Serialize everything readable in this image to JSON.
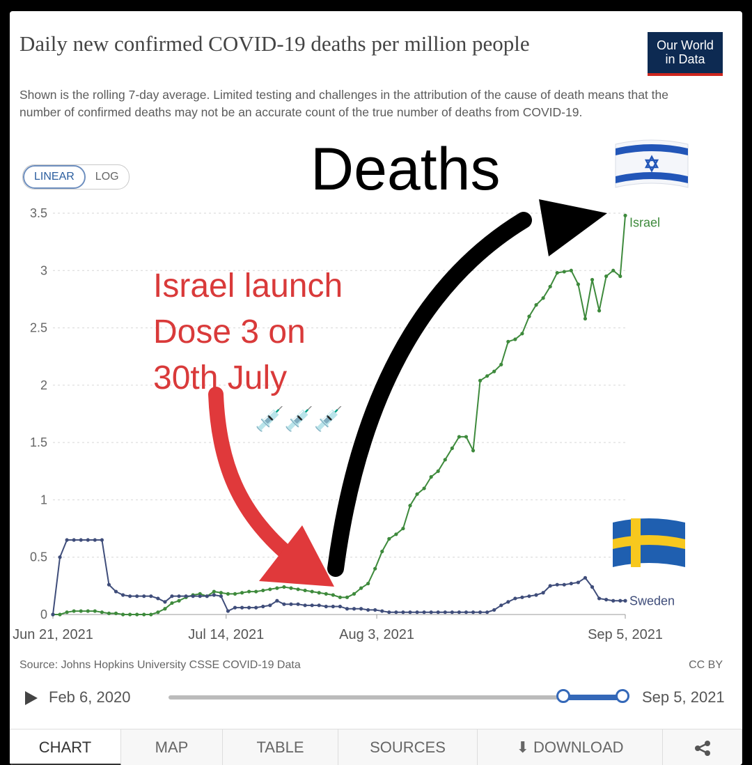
{
  "header": {
    "title": "Daily new confirmed COVID-19 deaths per million people",
    "subtitle": "Shown is the rolling 7-day average. Limited testing and challenges in the attribution of the cause of death means that the number of confirmed deaths may not be an accurate count of the true number of deaths from COVID-19.",
    "logo_line1": "Our World",
    "logo_line2": "in Data"
  },
  "scale_toggle": {
    "linear": "LINEAR",
    "log": "LOG",
    "selected": "LINEAR"
  },
  "annotations": {
    "deaths": "Deaths",
    "israel_line1": "Israel launch",
    "israel_line2": "Dose 3 on",
    "israel_line3": "30th July",
    "syringes": "💉💉💉"
  },
  "colors": {
    "israel": "#3e8a3c",
    "sweden": "#3f4d7a",
    "red_arrow": "#e0393b",
    "black_arrow": "#000000"
  },
  "chart_data": {
    "type": "line",
    "ylim": [
      0,
      3.5
    ],
    "y_ticks": [
      "0",
      "0.5",
      "1",
      "1.5",
      "2",
      "2.5",
      "3",
      "3.5"
    ],
    "x_ticks": [
      "Jun 21, 2021",
      "Jul 14, 2021",
      "Aug 3, 2021",
      "Sep 5, 2021"
    ],
    "x_tick_days": [
      0,
      23,
      43,
      76
    ],
    "x_range_days": [
      0,
      76
    ],
    "series": [
      {
        "name": "Israel",
        "values": [
          0.0,
          0.0,
          0.02,
          0.03,
          0.03,
          0.03,
          0.03,
          0.02,
          0.01,
          0.01,
          0.0,
          0.0,
          0.0,
          0.0,
          0.0,
          0.02,
          0.05,
          0.1,
          0.12,
          0.15,
          0.17,
          0.18,
          0.16,
          0.2,
          0.19,
          0.18,
          0.18,
          0.19,
          0.2,
          0.2,
          0.21,
          0.22,
          0.23,
          0.24,
          0.23,
          0.22,
          0.21,
          0.2,
          0.19,
          0.18,
          0.17,
          0.15,
          0.15,
          0.18,
          0.23,
          0.27,
          0.4,
          0.55,
          0.66,
          0.7,
          0.75,
          0.95,
          1.05,
          1.1,
          1.2,
          1.25,
          1.35,
          1.45,
          1.55,
          1.55,
          1.43,
          2.04,
          2.08,
          2.12,
          2.18,
          2.38,
          2.4,
          2.45,
          2.6,
          2.7,
          2.76,
          2.86,
          2.98,
          2.99,
          3.0,
          2.88,
          2.58,
          2.92,
          2.65,
          2.95,
          3.0,
          2.95,
          3.48
        ],
        "x_days": [
          0,
          0.93,
          1.86,
          2.79,
          3.72,
          4.65,
          5.58,
          6.51,
          7.44,
          8.37,
          9.3,
          10.23,
          11.16,
          12.09,
          13.02,
          13.95,
          14.88,
          15.81,
          16.74,
          17.67,
          18.6,
          19.53,
          20.46,
          21.39,
          22.32,
          23.25,
          24.18,
          25.11,
          26.04,
          26.97,
          27.9,
          28.83,
          29.76,
          30.69,
          31.62,
          32.55,
          33.48,
          34.41,
          35.34,
          36.27,
          37.2,
          38.13,
          39.06,
          39.99,
          40.92,
          41.85,
          42.78,
          43.71,
          44.64,
          45.57,
          46.5,
          47.43,
          48.36,
          49.29,
          50.22,
          51.15,
          52.08,
          53.01,
          53.94,
          54.87,
          55.8,
          56.73,
          57.66,
          58.59,
          59.52,
          60.45,
          61.38,
          62.31,
          63.24,
          64.17,
          65.1,
          66.03,
          66.96,
          67.89,
          68.82,
          69.75,
          70.68,
          71.61,
          72.54,
          73.47,
          74.4,
          75.33,
          76.0
        ]
      },
      {
        "name": "Sweden",
        "values": [
          0.0,
          0.5,
          0.65,
          0.65,
          0.65,
          0.65,
          0.65,
          0.65,
          0.26,
          0.2,
          0.17,
          0.16,
          0.16,
          0.16,
          0.16,
          0.14,
          0.11,
          0.16,
          0.16,
          0.16,
          0.16,
          0.16,
          0.16,
          0.17,
          0.16,
          0.03,
          0.06,
          0.06,
          0.06,
          0.06,
          0.07,
          0.08,
          0.12,
          0.09,
          0.09,
          0.09,
          0.08,
          0.08,
          0.08,
          0.07,
          0.07,
          0.07,
          0.05,
          0.05,
          0.05,
          0.04,
          0.04,
          0.03,
          0.02,
          0.02,
          0.02,
          0.02,
          0.02,
          0.02,
          0.02,
          0.02,
          0.02,
          0.02,
          0.02,
          0.02,
          0.02,
          0.02,
          0.02,
          0.04,
          0.08,
          0.11,
          0.14,
          0.15,
          0.16,
          0.17,
          0.19,
          0.25,
          0.26,
          0.26,
          0.27,
          0.28,
          0.32,
          0.24,
          0.14,
          0.13,
          0.12,
          0.12,
          0.12
        ],
        "x_days": [
          0,
          0.93,
          1.86,
          2.79,
          3.72,
          4.65,
          5.58,
          6.51,
          7.44,
          8.37,
          9.3,
          10.23,
          11.16,
          12.09,
          13.02,
          13.95,
          14.88,
          15.81,
          16.74,
          17.67,
          18.6,
          19.53,
          20.46,
          21.39,
          22.32,
          23.25,
          24.18,
          25.11,
          26.04,
          26.97,
          27.9,
          28.83,
          29.76,
          30.69,
          31.62,
          32.55,
          33.48,
          34.41,
          35.34,
          36.27,
          37.2,
          38.13,
          39.06,
          39.99,
          40.92,
          41.85,
          42.78,
          43.71,
          44.64,
          45.57,
          46.5,
          47.43,
          48.36,
          49.29,
          50.22,
          51.15,
          52.08,
          53.01,
          53.94,
          54.87,
          55.8,
          56.73,
          57.66,
          58.59,
          59.52,
          60.45,
          61.38,
          62.31,
          63.24,
          64.17,
          65.1,
          66.03,
          66.96,
          67.89,
          68.82,
          69.75,
          70.68,
          71.61,
          72.54,
          73.47,
          74.4,
          75.33,
          76.0
        ]
      }
    ],
    "grid": true,
    "legend": "end-labels"
  },
  "footer": {
    "source": "Source: Johns Hopkins University CSSE COVID-19 Data",
    "license": "CC BY"
  },
  "timeline": {
    "start_label": "Feb 6, 2020",
    "end_label": "Sep 5, 2021",
    "selected_start_fraction": 0.87,
    "selected_end_fraction": 1.0
  },
  "tabs": [
    "CHART",
    "MAP",
    "TABLE",
    "SOURCES",
    "DOWNLOAD"
  ],
  "active_tab": "CHART"
}
